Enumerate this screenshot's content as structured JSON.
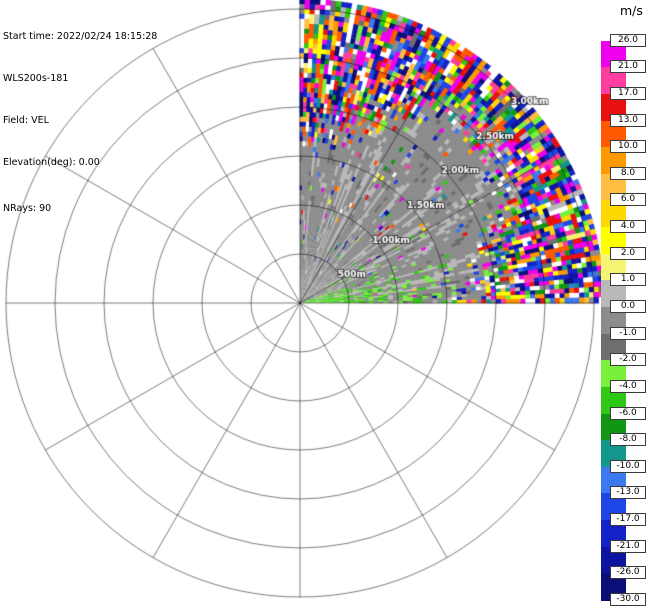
{
  "header": {
    "start_time_line": "Start time: 2022/02/24 18:15:28",
    "system_line": "WLS200s-181",
    "field_line": "Field: VEL",
    "elevation_line": "Elevation(deg): 0.00",
    "nrays_line": "NRays: 90"
  },
  "colorbar": {
    "unit": "m/s",
    "ticks": [
      "26.0",
      "21.0",
      "17.0",
      "13.0",
      "10.0",
      "8.0",
      "6.0",
      "4.0",
      "2.0",
      "1.0",
      "0.0",
      "-1.0",
      "-2.0",
      "-4.0",
      "-6.0",
      "-8.0",
      "-10.0",
      "-13.0",
      "-17.0",
      "-21.0",
      "-26.0",
      "-30.0"
    ]
  },
  "chart_data": {
    "type": "radar_ppi_sector",
    "title": "",
    "instrument": "WLS200s-181",
    "field": "VEL",
    "units": "m/s",
    "start_time": "2022/02/24 18:15:28",
    "elevation_deg": 0.0,
    "n_rays": 90,
    "sector_azimuth_deg": [
      0,
      90
    ],
    "max_range_km": 3.1,
    "gate_length_km": 0.05,
    "range_rings_km": [
      0.5,
      1.0,
      1.5,
      2.0,
      2.5,
      3.0
    ],
    "range_ring_labels": [
      "500m",
      "1.00km",
      "1.50km",
      "2.00km",
      "2.50km",
      "3.00km"
    ],
    "azimuth_spoke_interval_deg": 30,
    "legend_position": "right",
    "grid": true,
    "colormap": {
      "boundaries_mps": [
        26,
        21,
        17,
        13,
        10,
        8,
        6,
        4,
        2,
        1,
        0,
        -1,
        -2,
        -4,
        -6,
        -8,
        -10,
        -13,
        -17,
        -21,
        -26,
        -30
      ],
      "segment_colors": [
        "#FFFFFF",
        "#EE00EE",
        "#FF3CA0",
        "#E81010",
        "#FF5A00",
        "#FF9900",
        "#FFBE41",
        "#FFD800",
        "#FFFF00",
        "#F5F573",
        "#B9B9B9",
        "#8C8C8C",
        "#6E6E6E",
        "#78F03C",
        "#2FC814",
        "#0F9614",
        "#13968C",
        "#3C78F0",
        "#1E46E6",
        "#1423C8",
        "#0F14A0",
        "#0A0F78"
      ]
    },
    "field_summary": {
      "inner_region": "near-zero Doppler velocities (about -1 to +1 m/s, gray shades with lighter radial streaks) from the radar out to roughly 1.3-2.3 km",
      "green_streaks": "weak negative velocities (-2 to -6 m/s, greens) concentrated at azimuths ~70-90 deg within ~1.5 km of the radar",
      "outer_region": "noisy uncorrelated velocities spanning -30 to +30 m/s (blues, reds, yellows, magentas) beyond ~1.5-2.3 km, reaching the ~3.1 km data edge"
    },
    "noise_seed": 20220224
  }
}
